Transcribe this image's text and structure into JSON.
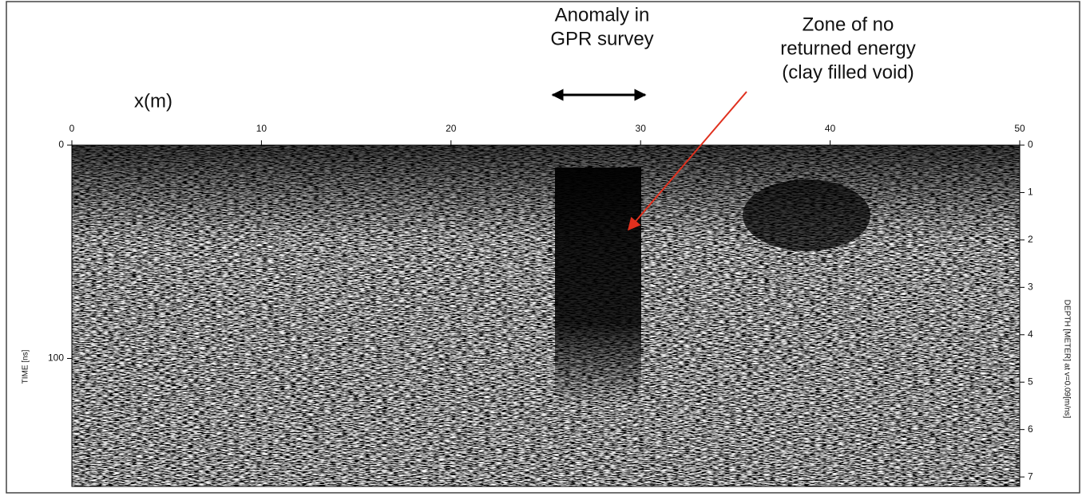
{
  "chart_data": {
    "type": "radargram",
    "x_label": "x(m)",
    "y_label": "TIME [ns]",
    "y2_label": "DEPTH [METER] at v=0.09[m/ns]",
    "xlim": [
      0,
      50
    ],
    "xticks": [
      0,
      10,
      20,
      30,
      40,
      50
    ],
    "ylim": [
      0,
      160
    ],
    "yticks": [
      0,
      100
    ],
    "y2lim": [
      0,
      7.2
    ],
    "y2ticks": [
      0,
      1,
      2,
      3,
      4,
      5,
      6,
      7
    ],
    "annotations": [
      {
        "lines": [
          "Anomaly in",
          "GPR survey"
        ]
      },
      {
        "lines": [
          "Zone of no",
          "returned energy",
          "(clay filled void)"
        ]
      }
    ]
  }
}
